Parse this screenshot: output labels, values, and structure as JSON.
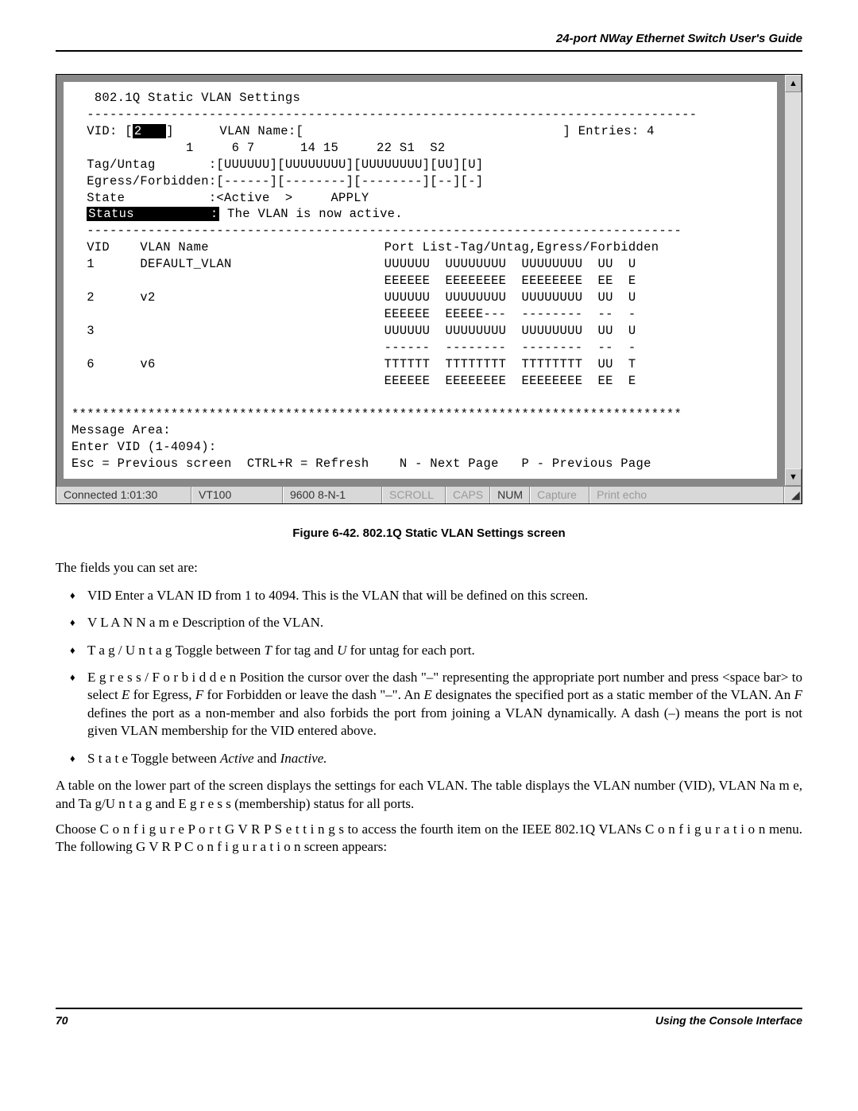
{
  "header": {
    "title": "24-port NWay Ethernet Switch User's Guide"
  },
  "terminal": {
    "title": "802.1Q Static VLAN Settings",
    "sep1": "--------------------------------------------------------------------------------",
    "row_vid": "  VID: [",
    "row_vid_inv": "2   ",
    "row_vid_rest": "]      VLAN Name:[                                  ] Entries: 4",
    "row_ports": "               1     6 7      14 15     22 S1  S2",
    "row_tag": "  Tag/Untag       :[UUUUUU][UUUUUUUU][UUUUUUUU][UU][U]",
    "row_ef": "  Egress/Forbidden:[------][--------][--------][--][-]",
    "row_state": "  State           :<Active  >     APPLY",
    "row_status_lbl": "Status          :",
    "row_status_val": " The VLAN is now active.",
    "sep2": "  ------------------------------------------------------------------------------",
    "tbl_hdr": "  VID    VLAN Name                       Port List-Tag/Untag,Egress/Forbidden",
    "r1a": "  1      DEFAULT_VLAN                    UUUUUU  UUUUUUUU  UUUUUUUU  UU  U",
    "r1b": "                                         EEEEEE  EEEEEEEE  EEEEEEEE  EE  E",
    "r2a": "  2      v2                              UUUUUU  UUUUUUUU  UUUUUUUU  UU  U",
    "r2b": "                                         EEEEEE  EEEEE---  --------  --  -",
    "r3a": "  3                                      UUUUUU  UUUUUUUU  UUUUUUUU  UU  U",
    "r3b": "                                         ------  --------  --------  --  -",
    "r4a": "  6      v6                              TTTTTT  TTTTTTTT  TTTTTTTT  UU  T",
    "r4b": "                                         EEEEEE  EEEEEEEE  EEEEEEEE  EE  E",
    "stars": "********************************************************************************",
    "msg1": "Message Area:",
    "msg2": "Enter VID (1-4094):",
    "msg3": "Esc = Previous screen  CTRL+R = Refresh    N - Next Page   P - Previous Page"
  },
  "statusbar": {
    "conn": "Connected 1:01:30",
    "term": "VT100",
    "baud": "9600 8-N-1",
    "scroll": "SCROLL",
    "caps": "CAPS",
    "num": "NUM",
    "capture": "Capture",
    "echo": "Print echo"
  },
  "caption": "Figure 6-42.  802.1Q Static VLAN Settings screen",
  "intro": "The fields you can set are:",
  "bullets": {
    "b1": "VID  Enter a VLAN ID from 1 to 4094. This is the VLAN that will be defined on this screen.",
    "b2_pre": "V L A N  N a m e",
    "b2_rest": "  Description of the VLAN.",
    "b3_pre": "T a g / U n t a g",
    "b3_mid": "  Toggle between ",
    "b3_i1": "T",
    "b3_mid2": " for tag and ",
    "b3_i2": "U",
    "b3_end": " for untag for each port.",
    "b4_pre": "E g r e s s / F o r b i d d e n",
    "b4_a": "  Position the cursor over the dash \"–\" representing the appropriate port number and press <space bar> to select ",
    "b4_i1": "E",
    "b4_b": " for Egress, ",
    "b4_i2": "F",
    "b4_c": " for Forbidden or leave the dash \"–\". An ",
    "b4_i3": "E",
    "b4_d": " designates the specified port as a static member of the VLAN. An ",
    "b4_i4": "F",
    "b4_e": " defines the port as a non-member and also forbids the port from joining a VLAN dynamically. A dash (–) means the port is not given VLAN membership for the VID entered above.",
    "b5_pre": "S t a t e",
    "b5_a": "  Toggle between ",
    "b5_i1": "Active",
    "b5_b": " and ",
    "b5_i2": "Inactive."
  },
  "p2a": "A table on the lower part of the screen displays the settings for each VLAN. The table displays the VLAN number (VID), ",
  "p2b": "VLAN Na m e,",
  "p2c": " and ",
  "p2d": "Ta g/U n t a g",
  "p2e": " and ",
  "p2f": "E g r e s s",
  "p2g": " (membership) status for all ports.",
  "p3a": "Choose ",
  "p3b": "C o n f i g u r e  P o r t  G V R P  S e t t i n g s",
  "p3c": " to access the fourth item on the IEEE 802.1Q VLANs ",
  "p3d": "C o n f i g u r a t i o n",
  "p3e": " menu. The following ",
  "p3f": "G V R P  C o n f i g u r a t i o n",
  "p3g": " screen appears:",
  "footer": {
    "page": "70",
    "section": "Using the Console Interface"
  }
}
